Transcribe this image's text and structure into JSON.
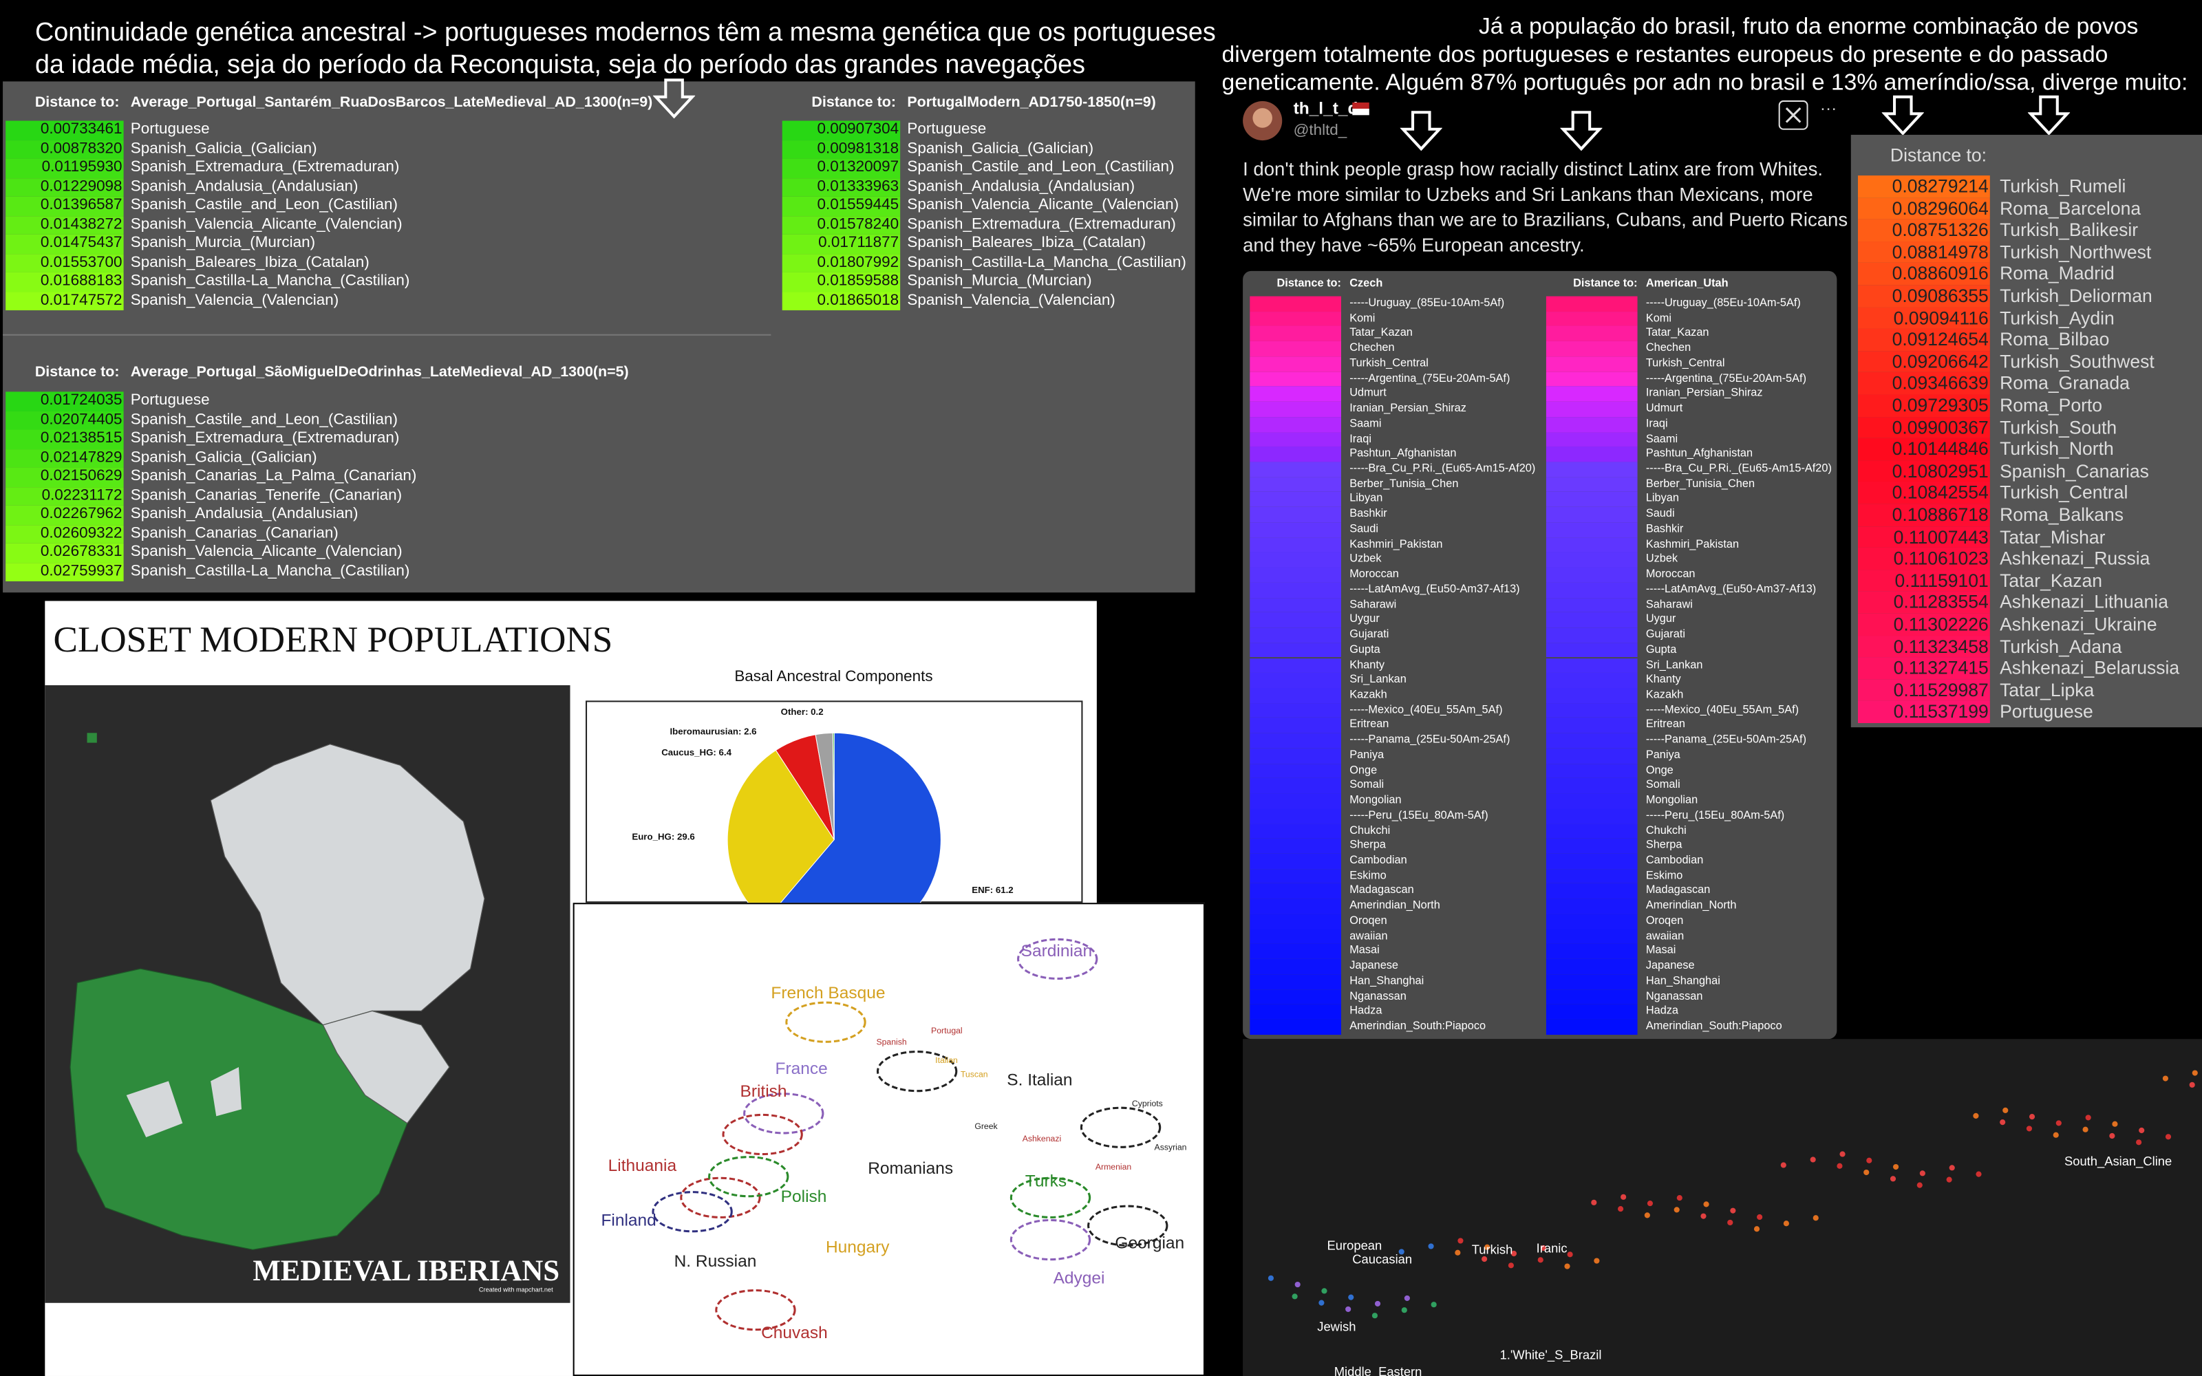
{
  "left_header": {
    "lines": [
      "Continuidade genética ancestral -> portugueses modernos têm a mesma genética que os portugueses",
      "da idade média, seja do período da Reconquista, seja do período das grandes navegações"
    ]
  },
  "right_header": {
    "lines": [
      "Já a população  do brasil, fruto da enorme combinação de povos",
      "divergem totalmente dos portugueses e restantes europeus do presente e do passado",
      "geneticamente. Alguém 87% português por adn no brasil e 13% ameríndio/ssa, diverge muito:"
    ]
  },
  "tables": [
    {
      "heading": "Distance to:",
      "target": "Average_Portugal_Santarém_RuaDosBarcos_LateMedieval_AD_1300(n=9)",
      "rows": [
        [
          "0.00733461",
          "Portuguese"
        ],
        [
          "0.00878320",
          "Spanish_Galicia_(Galician)"
        ],
        [
          "0.01195930",
          "Spanish_Extremadura_(Extremaduran)"
        ],
        [
          "0.01229098",
          "Spanish_Andalusia_(Andalusian)"
        ],
        [
          "0.01396587",
          "Spanish_Castile_and_Leon_(Castilian)"
        ],
        [
          "0.01438272",
          "Spanish_Valencia_Alicante_(Valencian)"
        ],
        [
          "0.01475437",
          "Spanish_Murcia_(Murcian)"
        ],
        [
          "0.01553700",
          "Spanish_Baleares_Ibiza_(Catalan)"
        ],
        [
          "0.01688183",
          "Spanish_Castilla-La_Mancha_(Castilian)"
        ],
        [
          "0.01747572",
          "Spanish_Valencia_(Valencian)"
        ]
      ]
    },
    {
      "heading": "Distance to:",
      "target": "PortugalModern_AD1750-1850(n=9)",
      "rows": [
        [
          "0.00907304",
          "Portuguese"
        ],
        [
          "0.00981318",
          "Spanish_Galicia_(Galician)"
        ],
        [
          "0.01320097",
          "Spanish_Castile_and_Leon_(Castilian)"
        ],
        [
          "0.01333963",
          "Spanish_Andalusia_(Andalusian)"
        ],
        [
          "0.01559445",
          "Spanish_Valencia_Alicante_(Valencian)"
        ],
        [
          "0.01578240",
          "Spanish_Extremadura_(Extremaduran)"
        ],
        [
          "0.01711877",
          "Spanish_Baleares_Ibiza_(Catalan)"
        ],
        [
          "0.01807992",
          "Spanish_Castilla-La_Mancha_(Castilian)"
        ],
        [
          "0.01859588",
          "Spanish_Murcia_(Murcian)"
        ],
        [
          "0.01865018",
          "Spanish_Valencia_(Valencian)"
        ]
      ]
    },
    {
      "heading": "Distance to:",
      "target": "Average_Portugal_SãoMiguelDeOdrinhas_LateMedieval_AD_1300(n=5)",
      "rows": [
        [
          "0.01724035",
          "Portuguese"
        ],
        [
          "0.02074405",
          "Spanish_Castile_and_Leon_(Castilian)"
        ],
        [
          "0.02138515",
          "Spanish_Extremadura_(Extremaduran)"
        ],
        [
          "0.02147829",
          "Spanish_Galicia_(Galician)"
        ],
        [
          "0.02150629",
          "Spanish_Canarias_La_Palma_(Canarian)"
        ],
        [
          "0.02231172",
          "Spanish_Canarias_Tenerife_(Canarian)"
        ],
        [
          "0.02267962",
          "Spanish_Andalusia_(Andalusian)"
        ],
        [
          "0.02609322",
          "Spanish_Canarias_(Canarian)"
        ],
        [
          "0.02678331",
          "Spanish_Valencia_Alicante_(Valencian)"
        ],
        [
          "0.02759937",
          "Spanish_Castilla-La_Mancha_(Castilian)"
        ]
      ]
    }
  ],
  "tweet": {
    "name": "th_l_t_d",
    "handle": "@thltd_",
    "text_lines": [
      "I don't think people grasp how racially distinct Latinx are from Whites.",
      "We're more similar to Uzbeks and Sri Lankans than Mexicans, more",
      "similar to Afghans than we are to Brazilians, Cubans, and Puerto Ricans -",
      "and they have ~65% European ancestry."
    ]
  },
  "comparison_tables": [
    {
      "heading": "Distance to:",
      "target": "Czech",
      "populations": [
        "-----Uruguay_(85Eu-10Am-5Af)",
        "Komi",
        "Tatar_Kazan",
        "Chechen",
        "Turkish_Central",
        "-----Argentina_(75Eu-20Am-5Af)",
        "Udmurt",
        "Iranian_Persian_Shiraz",
        "Saami",
        "Iraqi",
        "Pashtun_Afghanistan",
        "-----Bra_Cu_P.Ri._(Eu65-Am15-Af20)",
        "Berber_Tunisia_Chen",
        "Libyan",
        "Bashkir",
        "Saudi",
        "Kashmiri_Pakistan",
        "Uzbek",
        "Moroccan",
        "-----LatAmAvg_(Eu50-Am37-Af13)",
        "Saharawi",
        "Uygur",
        "Gujarati",
        "Gupta",
        "Khanty",
        "Sri_Lankan",
        "Kazakh",
        "-----Mexico_(40Eu_55Am_5Af)",
        "Eritrean",
        "-----Panama_(25Eu-50Am-25Af)",
        "Paniya",
        "Onge",
        "Somali",
        "Mongolian",
        "-----Peru_(15Eu_80Am-5Af)",
        "Chukchi",
        "Sherpa",
        "Cambodian",
        "Eskimo",
        "Madagascan",
        "Amerindian_North",
        "Oroqen",
        "awaiian",
        "Masai",
        "Japanese",
        "Han_Shanghai",
        "Nganassan",
        "Hadza",
        "Amerindian_South:Piapoco"
      ]
    },
    {
      "heading": "Distance to:",
      "target": "American_Utah",
      "populations": [
        "-----Uruguay_(85Eu-10Am-5Af)",
        "Komi",
        "Tatar_Kazan",
        "Chechen",
        "Turkish_Central",
        "-----Argentina_(75Eu-20Am-5Af)",
        "Iranian_Persian_Shiraz",
        "Udmurt",
        "Iraqi",
        "Saami",
        "Pashtun_Afghanistan",
        "-----Bra_Cu_P.Ri._(Eu65-Am15-Af20)",
        "Berber_Tunisia_Chen",
        "Libyan",
        "Saudi",
        "Bashkir",
        "Kashmiri_Pakistan",
        "Uzbek",
        "Moroccan",
        "-----LatAmAvg_(Eu50-Am37-Af13)",
        "Saharawi",
        "Uygur",
        "Gujarati",
        "Gupta",
        "Sri_Lankan",
        "Khanty",
        "Kazakh",
        "-----Mexico_(40Eu_55Am_5Af)",
        "Eritrean",
        "-----Panama_(25Eu-50Am-25Af)",
        "Paniya",
        "Onge",
        "Somali",
        "Mongolian",
        "-----Peru_(15Eu_80Am-5Af)",
        "Chukchi",
        "Sherpa",
        "Cambodian",
        "Eskimo",
        "Madagascan",
        "Amerindian_North",
        "Oroqen",
        "awaiian",
        "Masai",
        "Japanese",
        "Han_Shanghai",
        "Nganassan",
        "Hadza",
        "Amerindian_South:Piapoco"
      ]
    }
  ],
  "ranking_table": {
    "heading": "Distance to:",
    "rows": [
      [
        "0.08279214",
        "Turkish_Rumeli"
      ],
      [
        "0.08296064",
        "Roma_Barcelona"
      ],
      [
        "0.08751326",
        "Turkish_Balikesir"
      ],
      [
        "0.08814978",
        "Turkish_Northwest"
      ],
      [
        "0.08860916",
        "Roma_Madrid"
      ],
      [
        "0.09086355",
        "Turkish_Deliorman"
      ],
      [
        "0.09094116",
        "Turkish_Aydin"
      ],
      [
        "0.09124654",
        "Roma_Bilbao"
      ],
      [
        "0.09206642",
        "Turkish_Southwest"
      ],
      [
        "0.09346639",
        "Roma_Granada"
      ],
      [
        "0.09729305",
        "Roma_Porto"
      ],
      [
        "0.09900367",
        "Turkish_South"
      ],
      [
        "0.10144846",
        "Turkish_North"
      ],
      [
        "0.10802951",
        "Spanish_Canarias"
      ],
      [
        "0.10842554",
        "Turkish_Central"
      ],
      [
        "0.10886718",
        "Roma_Balkans"
      ],
      [
        "0.11007443",
        "Tatar_Mishar"
      ],
      [
        "0.11061023",
        "Ashkenazi_Russia"
      ],
      [
        "0.11159101",
        "Tatar_Kazan"
      ],
      [
        "0.11283554",
        "Ashkenazi_Lithuania"
      ],
      [
        "0.11302226",
        "Ashkenazi_Ukraine"
      ],
      [
        "0.11323458",
        "Turkish_Adana"
      ],
      [
        "0.11327415",
        "Ashkenazi_Belarussia"
      ],
      [
        "0.11529987",
        "Tatar_Lipka"
      ],
      [
        "0.11537199",
        "Portuguese"
      ]
    ]
  },
  "map": {
    "title": "CLOSET MODERN POPULATIONS",
    "caption": "MEDIEVAL IBERIANS",
    "credit": "Created with mapchart.net"
  },
  "pie_chart": {
    "type": "pie",
    "title": "Basal Ancestral Components",
    "labels": [
      "ENF: 61.2",
      "Euro_HG: 29.6",
      "Caucus_HG: 6.4",
      "Iberomaurusian: 2.6",
      "Other: 0.2"
    ],
    "values": [
      61.2,
      29.6,
      6.4,
      2.6,
      0.2
    ],
    "colors": [
      "#1a4fe0",
      "#e8d010",
      "#e01818",
      "#a0a0a0",
      "#30b030"
    ]
  },
  "pca_plot": {
    "labels": [
      "Sardinian",
      "French Basque",
      "France",
      "British",
      "S. Italian",
      "Romanians",
      "Lithuania",
      "Polish",
      "Finland",
      "Hungary",
      "N. Russian",
      "Turks",
      "Georgian",
      "Adygei",
      "Chuvash",
      "Spanish",
      "Portugal",
      "Italian",
      "Tuscan",
      "Greek",
      "Ashkenazi",
      "Armenian",
      "Cypriots",
      "Assyrian"
    ]
  },
  "scatter_plot": {
    "labels": [
      "European",
      "Caucasian",
      "Turkish",
      "Iranic",
      "South_Asian_Cline",
      "Jewish",
      "1.'White'_S_Brazil",
      "Middle_Eastern"
    ]
  }
}
